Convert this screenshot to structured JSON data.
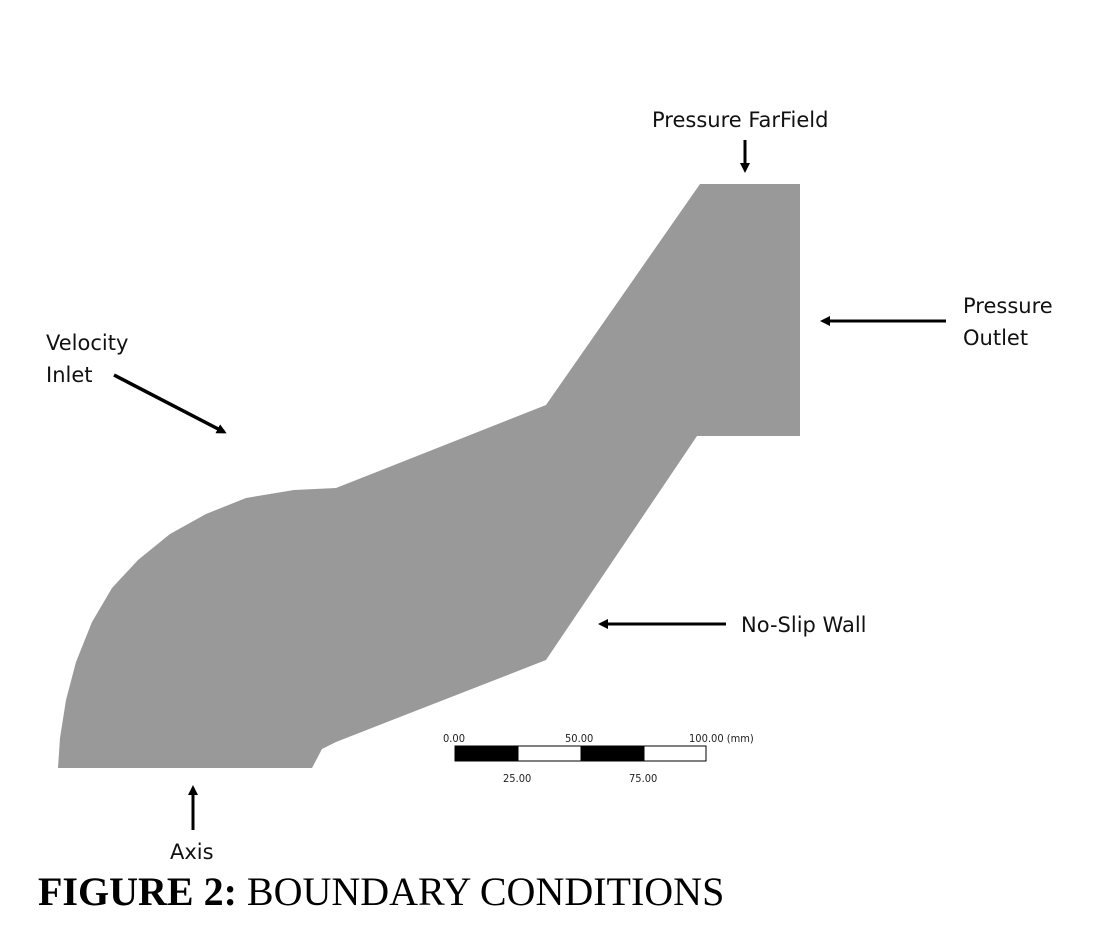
{
  "labels": {
    "pressure_farfield": "Pressure FarField",
    "pressure_outlet_line1": "Pressure",
    "pressure_outlet_line2": "Outlet",
    "velocity_inlet_line1": "Velocity",
    "velocity_inlet_line2": "Inlet",
    "no_slip_wall": "No-Slip Wall",
    "axis": "Axis"
  },
  "scale_bar": {
    "top_ticks": [
      "0.00",
      "50.00",
      "100.00 (mm)"
    ],
    "bottom_ticks": [
      "25.00",
      "75.00"
    ]
  },
  "caption": {
    "prefix": "FIGURE 2:",
    "text": " BOUNDARY CONDITIONS"
  },
  "colors": {
    "domain_fill": "#999999",
    "arrow": "#000000",
    "scale_dark": "#000000",
    "scale_light": "#ffffff"
  }
}
